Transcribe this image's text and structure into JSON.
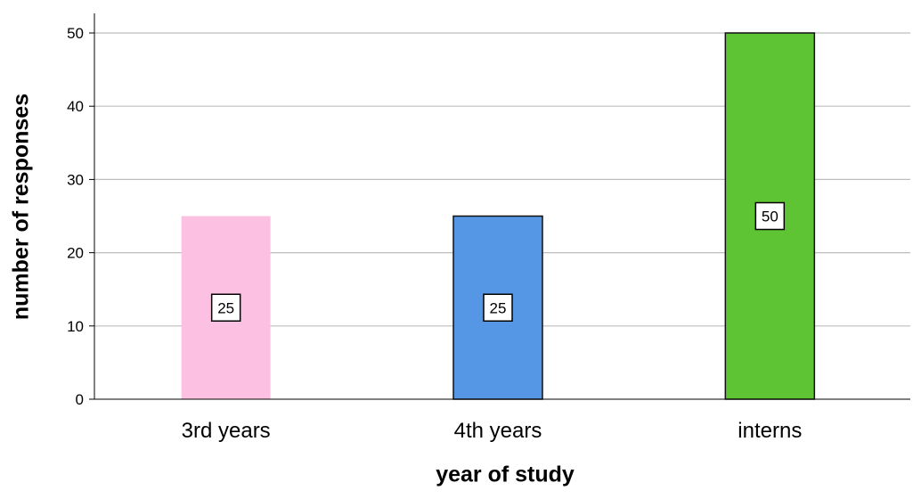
{
  "chart_data": {
    "type": "bar",
    "categories": [
      "3rd years",
      "4th years",
      "interns"
    ],
    "values": [
      25,
      25,
      50
    ],
    "colors": [
      "#fcc0e2",
      "#5597e4",
      "#5ec434"
    ],
    "data_labels": [
      "25",
      "25",
      "50"
    ],
    "xlabel": "year of study",
    "ylabel": "number of responses",
    "ylim": [
      0,
      50
    ],
    "yticks": [
      0,
      10,
      20,
      30,
      40,
      50
    ],
    "grid": true,
    "legend": "none"
  }
}
